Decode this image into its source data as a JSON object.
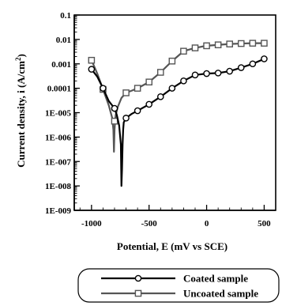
{
  "chart_data": {
    "type": "line",
    "xlabel": "Potential, E (mV vs SCE)",
    "ylabel": "Current density, i (A/cm",
    "ylabel_sup": "2",
    "ylabel_close": ")",
    "xlim": [
      -1150,
      600
    ],
    "ylim": [
      1e-09,
      0.1
    ],
    "y_scale": "log",
    "x_ticks": [
      -1000,
      -500,
      0,
      500
    ],
    "x_tick_labels": [
      "-1000",
      "-500",
      "0",
      "500"
    ],
    "y_ticks": [
      0.1,
      0.01,
      0.001,
      0.0001,
      1e-05,
      1e-06,
      1e-07,
      1e-08,
      1e-09
    ],
    "y_tick_labels": [
      "0.1",
      "0.01",
      "0.001",
      "0.0001",
      "1E-005",
      "1E-006",
      "1E-007",
      "1E-008",
      "1E-009"
    ],
    "grid": false,
    "legend_position": "below",
    "series": [
      {
        "name": "Coated sample",
        "color": "#000000",
        "marker": "circle",
        "marker_x": [
          -1000,
          -900,
          -800,
          -700,
          -600,
          -500,
          -400,
          -300,
          -200,
          -100,
          0,
          100,
          200,
          300,
          400,
          500
        ],
        "marker_y": [
          0.0006,
          0.0001,
          1.5e-05,
          6e-06,
          1.2e-05,
          2.2e-05,
          4.5e-05,
          0.0001,
          0.0002,
          0.00035,
          0.0004,
          0.00042,
          0.0005,
          0.0007,
          0.001,
          0.0016
        ],
        "curve_x": [
          -1000,
          -950,
          -900,
          -850,
          -800,
          -780,
          -760,
          -745,
          -740,
          -735,
          -730,
          -725,
          -720,
          -700,
          -650,
          -600,
          -500,
          -400,
          -300,
          -200,
          -100,
          0,
          100,
          200,
          300,
          400,
          500
        ],
        "curve_y": [
          0.0006,
          0.0003,
          0.0001,
          3e-05,
          1.5e-05,
          8e-06,
          3e-06,
          5e-07,
          1e-08,
          5e-08,
          5e-07,
          2e-06,
          4e-06,
          6e-06,
          9e-06,
          1.2e-05,
          2.2e-05,
          4.5e-05,
          0.0001,
          0.0002,
          0.00035,
          0.0004,
          0.00042,
          0.0005,
          0.0007,
          0.001,
          0.0016
        ]
      },
      {
        "name": "Uncoated sample",
        "color": "#555555",
        "marker": "square",
        "marker_x": [
          -1000,
          -900,
          -800,
          -700,
          -600,
          -500,
          -400,
          -300,
          -200,
          -100,
          0,
          100,
          200,
          300,
          400,
          500
        ],
        "marker_y": [
          0.0014,
          9e-05,
          4.5e-06,
          6.5e-05,
          0.0001,
          0.00018,
          0.00045,
          0.0013,
          0.0033,
          0.0045,
          0.0055,
          0.006,
          0.0065,
          0.0068,
          0.007,
          0.007
        ],
        "curve_x": [
          -1000,
          -950,
          -900,
          -850,
          -820,
          -810,
          -805,
          -800,
          -795,
          -790,
          -770,
          -740,
          -700,
          -650,
          -600,
          -500,
          -400,
          -300,
          -200,
          -100,
          0,
          100,
          200,
          300,
          400,
          500
        ],
        "curve_y": [
          0.0014,
          0.0004,
          9e-05,
          2e-05,
          6e-06,
          2e-06,
          2.5e-07,
          2e-06,
          4.5e-06,
          8e-06,
          1.8e-05,
          4e-05,
          6.5e-05,
          8e-05,
          0.0001,
          0.00018,
          0.00045,
          0.0013,
          0.0033,
          0.0045,
          0.0055,
          0.006,
          0.0065,
          0.0068,
          0.007,
          0.007
        ]
      }
    ]
  }
}
